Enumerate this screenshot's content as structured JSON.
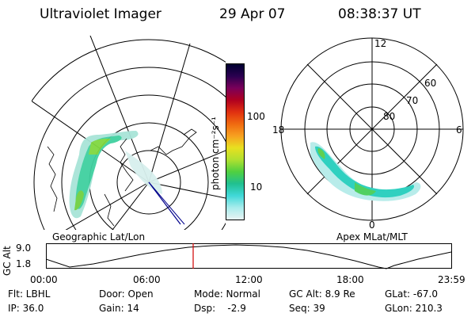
{
  "header": {
    "instrument": "Ultraviolet Imager",
    "date": "29 Apr 07",
    "time": "08:38:37 UT"
  },
  "left_panel": {
    "label": "Geographic Lat/Lon"
  },
  "right_panel": {
    "label": "Apex MLat/MLT",
    "mlt_labels": {
      "top": "12",
      "left": "18",
      "right": "6",
      "bottom": "0"
    },
    "lat_labels": [
      "60",
      "70",
      "80"
    ]
  },
  "colorbar": {
    "unit": "photon cm⁻²s⁻¹",
    "ticks": [
      "100",
      "10"
    ],
    "colors": [
      "#000030",
      "#2a0050",
      "#7a005a",
      "#b00020",
      "#e03010",
      "#f06a10",
      "#f7a020",
      "#e8e020",
      "#b0e030",
      "#50d040",
      "#20c090",
      "#40d8d8",
      "#a8ecec",
      "#e8f4f4"
    ]
  },
  "altitude_chart": {
    "ylabel": "GC Alt",
    "yticks": [
      "9.0",
      "1.8"
    ],
    "xticks": [
      "00:00",
      "06:00",
      "12:00",
      "18:00",
      "23:59"
    ],
    "current_time_marker": "08:38"
  },
  "info": {
    "flt": "Flt: LBHL",
    "ip": "IP: 36.0",
    "door": "Door: Open",
    "gain": "Gain: 14",
    "mode": "Mode: Normal",
    "dsp": "Dsp:    -2.9",
    "gc_alt": "GC Alt: 8.9 Re",
    "seq": "Seq: 39",
    "glat": "GLat: -67.0",
    "glon": "GLon: 210.3"
  }
}
